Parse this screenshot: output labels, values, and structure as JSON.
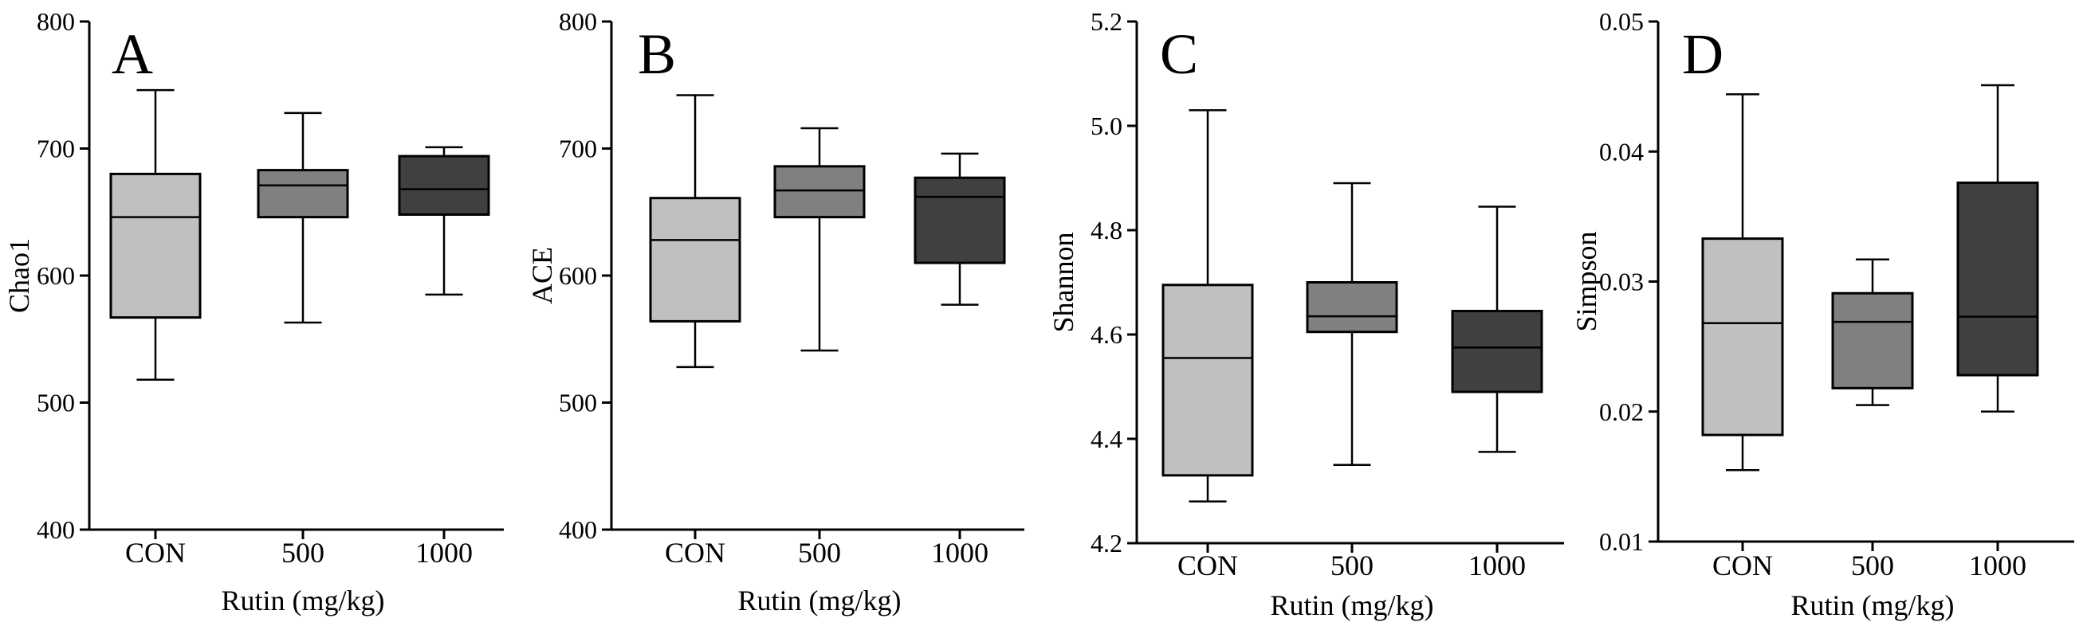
{
  "chart_data": [
    {
      "type": "box",
      "panel_label": "A",
      "ylabel": "Chao1",
      "xlabel": "Rutin (mg/kg)",
      "ylim": [
        400,
        800
      ],
      "yticks": [
        400,
        500,
        600,
        700,
        800
      ],
      "ytick_labels": [
        "400",
        "500",
        "600",
        "700",
        "800"
      ],
      "categories": [
        "CON",
        "500",
        "1000"
      ],
      "box_colors": [
        "#c0c0c0",
        "#808080",
        "#404040"
      ],
      "boxes": [
        {
          "name": "CON",
          "min": 518,
          "q1": 567,
          "median": 646,
          "q3": 680,
          "max": 746
        },
        {
          "name": "500",
          "min": 563,
          "q1": 646,
          "median": 671,
          "q3": 683,
          "max": 728
        },
        {
          "name": "1000",
          "min": 585,
          "q1": 648,
          "median": 668,
          "q3": 694,
          "max": 701
        }
      ]
    },
    {
      "type": "box",
      "panel_label": "B",
      "ylabel": "ACE",
      "xlabel": "Rutin (mg/kg)",
      "ylim": [
        400,
        800
      ],
      "yticks": [
        400,
        500,
        600,
        700,
        800
      ],
      "ytick_labels": [
        "400",
        "500",
        "600",
        "700",
        "800"
      ],
      "categories": [
        "CON",
        "500",
        "1000"
      ],
      "box_colors": [
        "#c0c0c0",
        "#808080",
        "#404040"
      ],
      "boxes": [
        {
          "name": "CON",
          "min": 528,
          "q1": 564,
          "median": 628,
          "q3": 661,
          "max": 742
        },
        {
          "name": "500",
          "min": 541,
          "q1": 646,
          "median": 667,
          "q3": 686,
          "max": 716
        },
        {
          "name": "1000",
          "min": 577,
          "q1": 610,
          "median": 662,
          "q3": 677,
          "max": 696
        }
      ]
    },
    {
      "type": "box",
      "panel_label": "C",
      "ylabel": "Shannon",
      "xlabel": "Rutin (mg/kg)",
      "ylim": [
        4.2,
        5.2
      ],
      "yticks": [
        4.2,
        4.4,
        4.6,
        4.8,
        5.0,
        5.2
      ],
      "ytick_labels": [
        "4.2",
        "4.4",
        "4.6",
        "4.8",
        "5.0",
        "5.2"
      ],
      "categories": [
        "CON",
        "500",
        "1000"
      ],
      "box_colors": [
        "#c0c0c0",
        "#808080",
        "#404040"
      ],
      "boxes": [
        {
          "name": "CON",
          "min": 4.28,
          "q1": 4.33,
          "median": 4.555,
          "q3": 4.695,
          "max": 5.03
        },
        {
          "name": "500",
          "min": 4.35,
          "q1": 4.605,
          "median": 4.635,
          "q3": 4.7,
          "max": 4.89
        },
        {
          "name": "1000",
          "min": 4.375,
          "q1": 4.49,
          "median": 4.575,
          "q3": 4.645,
          "max": 4.845
        }
      ]
    },
    {
      "type": "box",
      "panel_label": "D",
      "ylabel": "Simpson",
      "xlabel": "Rutin (mg/kg)",
      "ylim": [
        0.01,
        0.05
      ],
      "yticks": [
        0.01,
        0.02,
        0.03,
        0.04,
        0.05
      ],
      "ytick_labels": [
        "0.01",
        "0.02",
        "0.03",
        "0.04",
        "0.05"
      ],
      "categories": [
        "CON",
        "500",
        "1000"
      ],
      "box_colors": [
        "#c0c0c0",
        "#808080",
        "#404040"
      ],
      "boxes": [
        {
          "name": "CON",
          "min": 0.0155,
          "q1": 0.0182,
          "median": 0.0268,
          "q3": 0.0333,
          "max": 0.0444
        },
        {
          "name": "500",
          "min": 0.0205,
          "q1": 0.0218,
          "median": 0.0269,
          "q3": 0.0291,
          "max": 0.0317
        },
        {
          "name": "1000",
          "min": 0.02,
          "q1": 0.0228,
          "median": 0.0273,
          "q3": 0.0376,
          "max": 0.0451
        }
      ]
    }
  ]
}
